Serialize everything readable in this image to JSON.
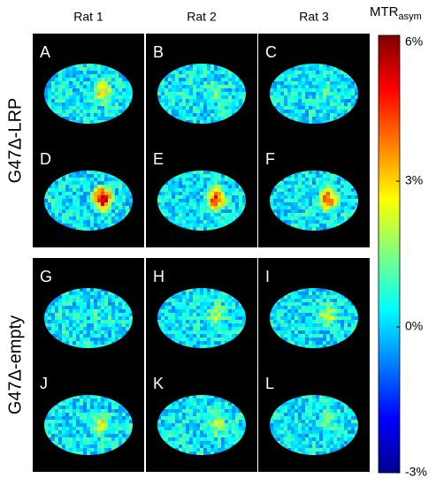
{
  "figure": {
    "columns": [
      "Rat 1",
      "Rat 2",
      "Rat 3"
    ],
    "groups": [
      {
        "label": "G47Δ-LRP",
        "panels": [
          [
            "A",
            "B",
            "C"
          ],
          [
            "D",
            "E",
            "F"
          ]
        ]
      },
      {
        "label": "G47Δ-empty",
        "panels": [
          [
            "G",
            "H",
            "I"
          ],
          [
            "J",
            "K",
            "L"
          ]
        ]
      }
    ],
    "colorbar": {
      "title": "MTR",
      "title_sub": "asym",
      "lim": [
        -3,
        6
      ],
      "ticks": [
        {
          "value": 6,
          "label": "6%"
        },
        {
          "value": 3,
          "label": "3%"
        },
        {
          "value": 0,
          "label": "0%"
        },
        {
          "value": -3,
          "label": "-3%"
        }
      ]
    }
  }
}
